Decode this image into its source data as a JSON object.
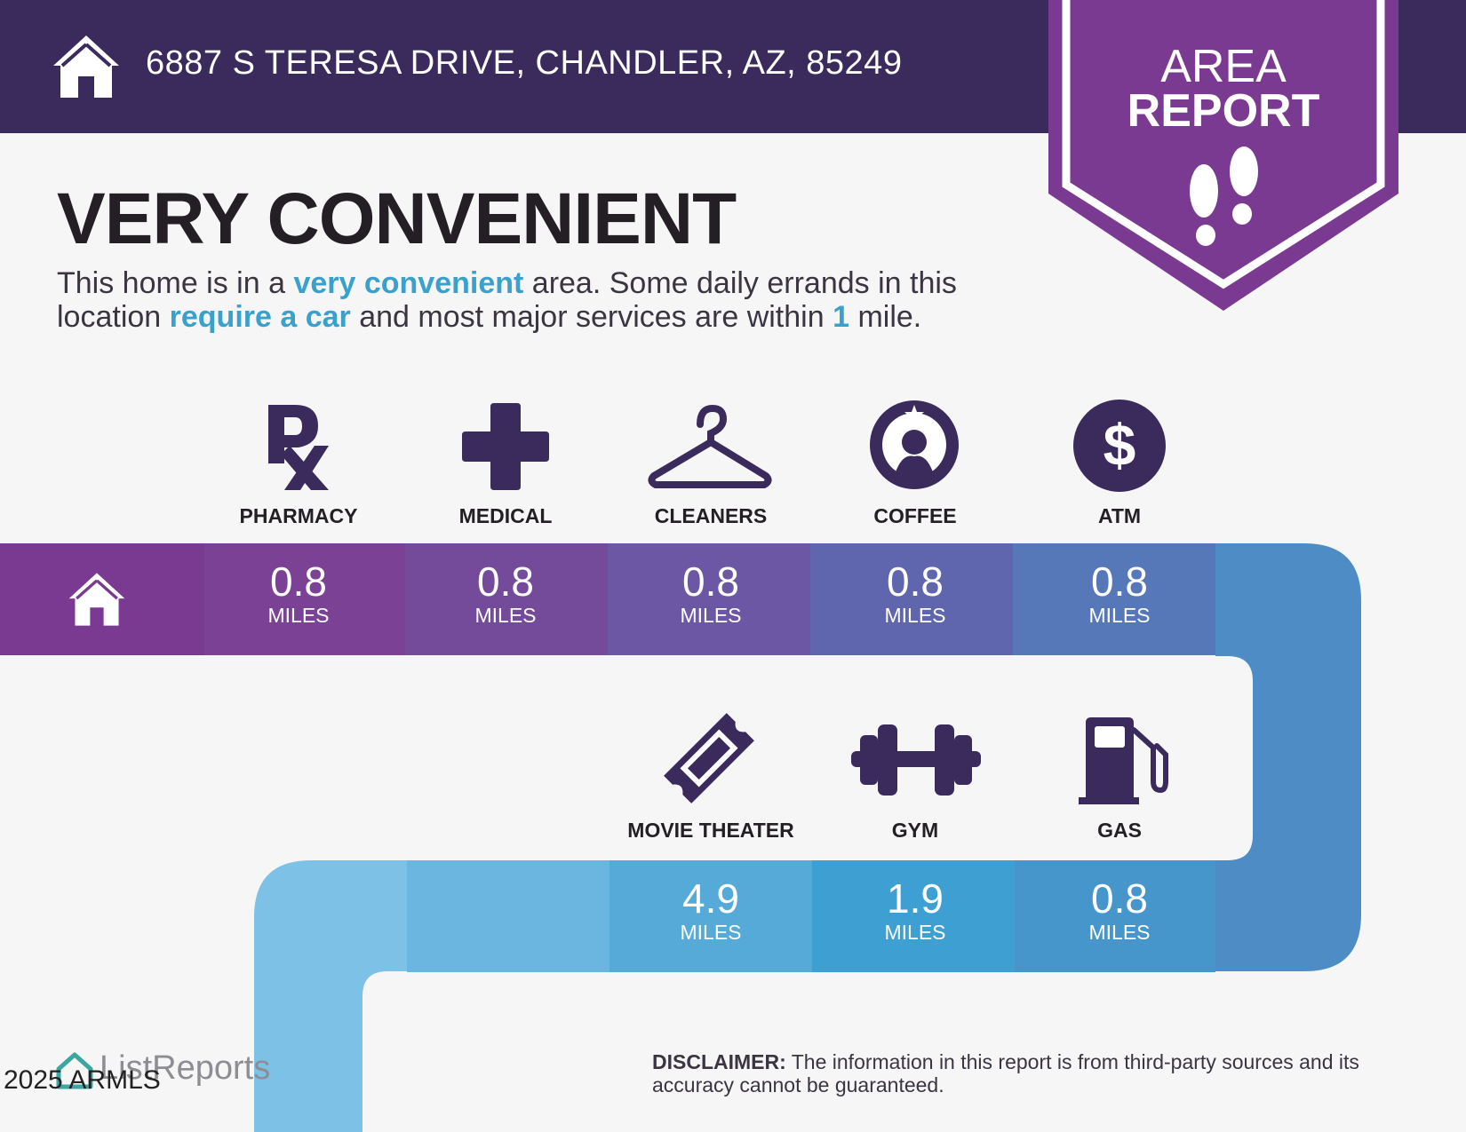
{
  "header": {
    "address": "6887 S TERESA DRIVE, CHANDLER, AZ, 85249",
    "badge_line1": "AREA",
    "badge_line2": "REPORT"
  },
  "headline": "VERY CONVENIENT",
  "description": {
    "p1": "This home is in a ",
    "h1": "very convenient",
    "p2": " area. Some daily errands in this location ",
    "h2": "require a car",
    "p3": " and most major services are within ",
    "h3": "1",
    "p4": " mile."
  },
  "row1": [
    {
      "label": "PHARMACY",
      "distance": "0.8",
      "unit": "MILES",
      "icon": "rx-icon"
    },
    {
      "label": "MEDICAL",
      "distance": "0.8",
      "unit": "MILES",
      "icon": "medical-cross-icon"
    },
    {
      "label": "CLEANERS",
      "distance": "0.8",
      "unit": "MILES",
      "icon": "hanger-icon"
    },
    {
      "label": "COFFEE",
      "distance": "0.8",
      "unit": "MILES",
      "icon": "coffee-logo-icon"
    },
    {
      "label": "ATM",
      "distance": "0.8",
      "unit": "MILES",
      "icon": "dollar-icon"
    }
  ],
  "row2": [
    {
      "label": "MOVIE THEATER",
      "distance": "4.9",
      "unit": "MILES",
      "icon": "ticket-icon"
    },
    {
      "label": "GYM",
      "distance": "1.9",
      "unit": "MILES",
      "icon": "dumbbell-icon"
    },
    {
      "label": "GAS",
      "distance": "0.8",
      "unit": "MILES",
      "icon": "gas-pump-icon"
    }
  ],
  "footer": {
    "disclaimer_label": "DISCLAIMER:",
    "disclaimer_text": " The information in this report is from third-party sources and its accuracy cannot be guaranteed.",
    "brand": "ListReports",
    "copyright": "2025 ARMLS"
  },
  "colors": {
    "header_bg": "#3b2a5c",
    "badge": "#7b3a92",
    "highlight": "#3aa0cc",
    "icon": "#3b2a5c"
  }
}
